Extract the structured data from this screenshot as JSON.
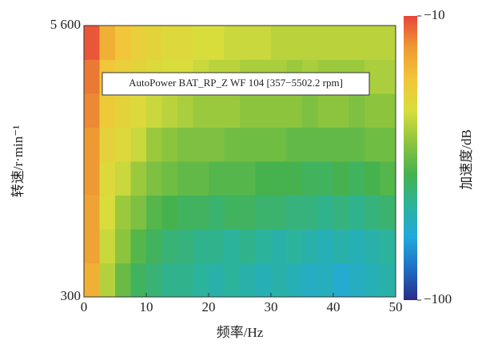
{
  "chart_data": {
    "type": "heatmap",
    "annotation": "AutoPower BAT_RP_Z WF 104 [357−5502.2 rpm]",
    "x_label": "频率/Hz",
    "y_label": "转速/r·min⁻¹",
    "colorbar_label": "加速度/dB",
    "x": [
      1.25,
      3.75,
      6.25,
      8.75,
      11.25,
      13.75,
      16.25,
      18.75,
      21.25,
      23.75,
      26.25,
      28.75,
      31.25,
      33.75,
      36.25,
      38.75,
      41.25,
      43.75,
      46.25,
      48.75
    ],
    "y": [
      631,
      1294,
      1956,
      2619,
      3281,
      3944,
      4606,
      5269
    ],
    "values": [
      [
        -25,
        -45,
        -55,
        -62,
        -65,
        -68,
        -68,
        -70,
        -72,
        -70,
        -72,
        -74,
        -72,
        -74,
        -76,
        -75,
        -78,
        -76,
        -74,
        -72
      ],
      [
        -22,
        -42,
        -50,
        -58,
        -62,
        -65,
        -66,
        -68,
        -68,
        -70,
        -68,
        -70,
        -72,
        -70,
        -72,
        -74,
        -72,
        -74,
        -72,
        -70
      ],
      [
        -22,
        -40,
        -48,
        -52,
        -58,
        -60,
        -62,
        -62,
        -64,
        -62,
        -62,
        -64,
        -64,
        -66,
        -66,
        -68,
        -66,
        -68,
        -66,
        -64
      ],
      [
        -20,
        -38,
        -42,
        -48,
        -52,
        -54,
        -56,
        -56,
        -58,
        -58,
        -58,
        -60,
        -60,
        -60,
        -62,
        -62,
        -60,
        -62,
        -60,
        -58
      ],
      [
        -20,
        -35,
        -38,
        -42,
        -48,
        -50,
        -52,
        -52,
        -52,
        -54,
        -54,
        -54,
        -54,
        -56,
        -56,
        -56,
        -56,
        -56,
        -54,
        -54
      ],
      [
        -18,
        -32,
        -36,
        -38,
        -42,
        -44,
        -46,
        -48,
        -48,
        -48,
        -50,
        -50,
        -50,
        -50,
        -52,
        -50,
        -50,
        -52,
        -50,
        -50
      ],
      [
        -16,
        -30,
        -34,
        -36,
        -38,
        -40,
        -40,
        -42,
        -44,
        -44,
        -46,
        -46,
        -46,
        -48,
        -46,
        -48,
        -48,
        -48,
        -46,
        -46
      ],
      [
        -12,
        -25,
        -30,
        -34,
        -36,
        -38,
        -38,
        -40,
        -40,
        -42,
        -42,
        -42,
        -44,
        -44,
        -44,
        -44,
        -44,
        -44,
        -44,
        -44
      ]
    ],
    "xlim": [
      0,
      50
    ],
    "xticks": [
      0,
      10,
      20,
      30,
      40,
      50
    ],
    "ylim": [
      300,
      5600
    ],
    "yticks": [
      300,
      {
        "value": 5600,
        "label": "5 600"
      }
    ],
    "clim": [
      -100,
      -10
    ],
    "cticks": [
      {
        "value": -10,
        "label": "−10"
      },
      {
        "value": -100,
        "label": "−100"
      }
    ],
    "colormap": [
      "#2a2c86",
      "#1f6fc4",
      "#22a9dc",
      "#2bb39c",
      "#46b24e",
      "#8cc43e",
      "#d8dd3c",
      "#f2c53a",
      "#ee9a32",
      "#e8453a"
    ]
  }
}
